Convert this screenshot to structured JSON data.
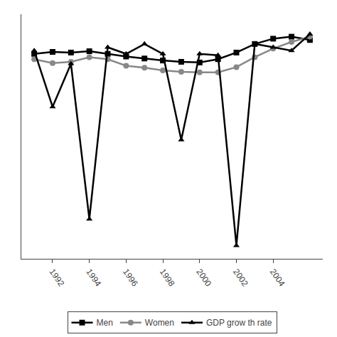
{
  "chart_data": {
    "type": "line",
    "x": [
      1991,
      1992,
      1993,
      1994,
      1995,
      1996,
      1997,
      1998,
      1999,
      2000,
      2001,
      2002,
      2003,
      2004,
      2005,
      2006
    ],
    "series": [
      {
        "name": "Men",
        "color": "#000000",
        "marker": "square",
        "values": [
          16.0,
          16.3,
          16.2,
          16.4,
          16.0,
          15.6,
          15.3,
          15.0,
          14.8,
          14.7,
          15.2,
          16.2,
          17.5,
          18.3,
          18.6,
          18.1
        ]
      },
      {
        "name": "Women",
        "color": "#888888",
        "marker": "circle",
        "values": [
          15.2,
          14.6,
          14.8,
          15.5,
          15.2,
          14.2,
          13.9,
          13.5,
          13.3,
          13.2,
          13.2,
          14.0,
          15.5,
          16.8,
          17.8,
          18.6
        ]
      },
      {
        "name": "GDP grow th rate",
        "color": "#000000",
        "marker": "triangle-up",
        "values": [
          16.5,
          8.0,
          14.5,
          -9.0,
          17.0,
          16.0,
          17.5,
          16.0,
          3.0,
          16.0,
          15.8,
          -13.0,
          17.5,
          17.0,
          16.5,
          19.0
        ]
      }
    ],
    "xlim": [
      1990.3,
      2006.7
    ],
    "xticks": [
      1992,
      1994,
      1996,
      1998,
      2000,
      2002,
      2004
    ],
    "ylim": [
      -15,
      22
    ],
    "yticks": [],
    "grid": false,
    "tick_labels": "x",
    "legend": "bottom"
  }
}
